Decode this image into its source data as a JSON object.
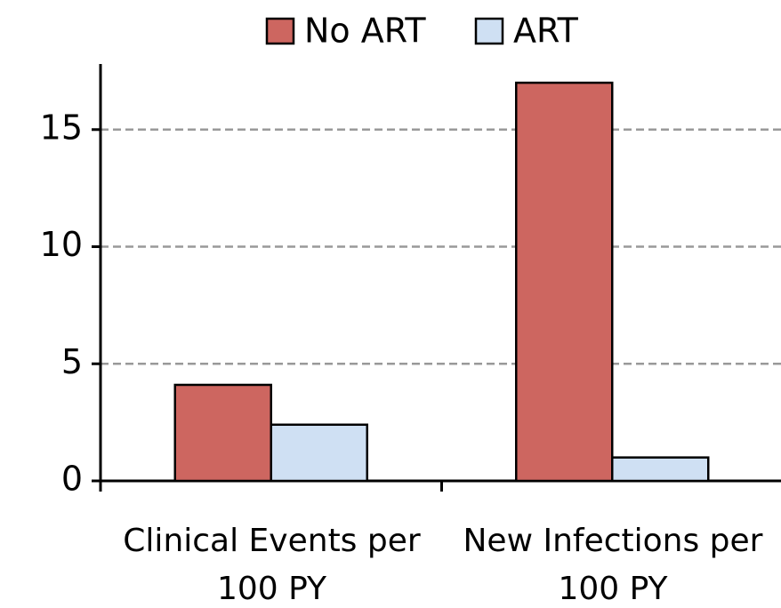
{
  "chart_data": {
    "type": "bar",
    "categories": [
      "Clinical Events per 100 PY",
      "New Infections per 100 PY"
    ],
    "series": [
      {
        "name": "No ART",
        "color": "#cd6660",
        "values": [
          4.1,
          17
        ]
      },
      {
        "name": "ART",
        "color": "#cfe0f3",
        "values": [
          2.4,
          1.0
        ]
      }
    ],
    "ylim": [
      0,
      17.8
    ],
    "yticks": [
      0,
      5,
      10,
      15
    ],
    "grid": true,
    "legend": "top"
  }
}
